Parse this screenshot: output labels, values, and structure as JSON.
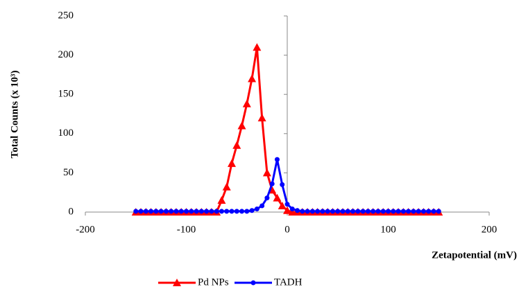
{
  "chart_data": {
    "type": "line",
    "x_label": "Zetapotential (mV)",
    "y_label": "Total Counts  (x 10³)",
    "x": [
      -150,
      -145,
      -140,
      -135,
      -130,
      -125,
      -120,
      -115,
      -110,
      -105,
      -100,
      -95,
      -90,
      -85,
      -80,
      -75,
      -70,
      -65,
      -60,
      -55,
      -50,
      -45,
      -40,
      -35,
      -30,
      -25,
      -20,
      -15,
      -10,
      -5,
      0,
      5,
      10,
      15,
      20,
      25,
      30,
      35,
      40,
      45,
      50,
      55,
      60,
      65,
      70,
      75,
      80,
      85,
      90,
      95,
      100,
      105,
      110,
      115,
      120,
      125,
      130,
      135,
      140,
      145,
      150
    ],
    "series": [
      {
        "name": "Pd NPs",
        "color": "#ff0000",
        "marker": "triangle",
        "values": [
          0,
          0,
          0,
          0,
          0,
          0,
          0,
          0,
          0,
          0,
          0,
          0,
          0,
          0,
          0,
          0,
          0,
          15,
          32,
          62,
          85,
          110,
          138,
          170,
          210,
          120,
          50,
          28,
          18,
          8,
          2,
          0,
          0,
          0,
          0,
          0,
          0,
          0,
          0,
          0,
          0,
          0,
          0,
          0,
          0,
          0,
          0,
          0,
          0,
          0,
          0,
          0,
          0,
          0,
          0,
          0,
          0,
          0,
          0,
          0,
          0
        ]
      },
      {
        "name": "TADH",
        "color": "#0000ff",
        "marker": "circle",
        "values": [
          1,
          1,
          1,
          1,
          1,
          1,
          1,
          1,
          1,
          1,
          1,
          1,
          1,
          1,
          1,
          1,
          1,
          1,
          1,
          1,
          1,
          1,
          1,
          2,
          4,
          8,
          18,
          36,
          67,
          35,
          10,
          4,
          2,
          1,
          1,
          1,
          1,
          1,
          1,
          1,
          1,
          1,
          1,
          1,
          1,
          1,
          1,
          1,
          1,
          1,
          1,
          1,
          1,
          1,
          1,
          1,
          1,
          1,
          1,
          1,
          1
        ]
      }
    ],
    "xlim": [
      -200,
      200
    ],
    "xticks": [
      -200,
      -100,
      0,
      100,
      200
    ],
    "ylim": [
      0,
      250
    ],
    "yticks": [
      0,
      50,
      100,
      150,
      200,
      250
    ],
    "grid": false,
    "legend": "bottom"
  }
}
